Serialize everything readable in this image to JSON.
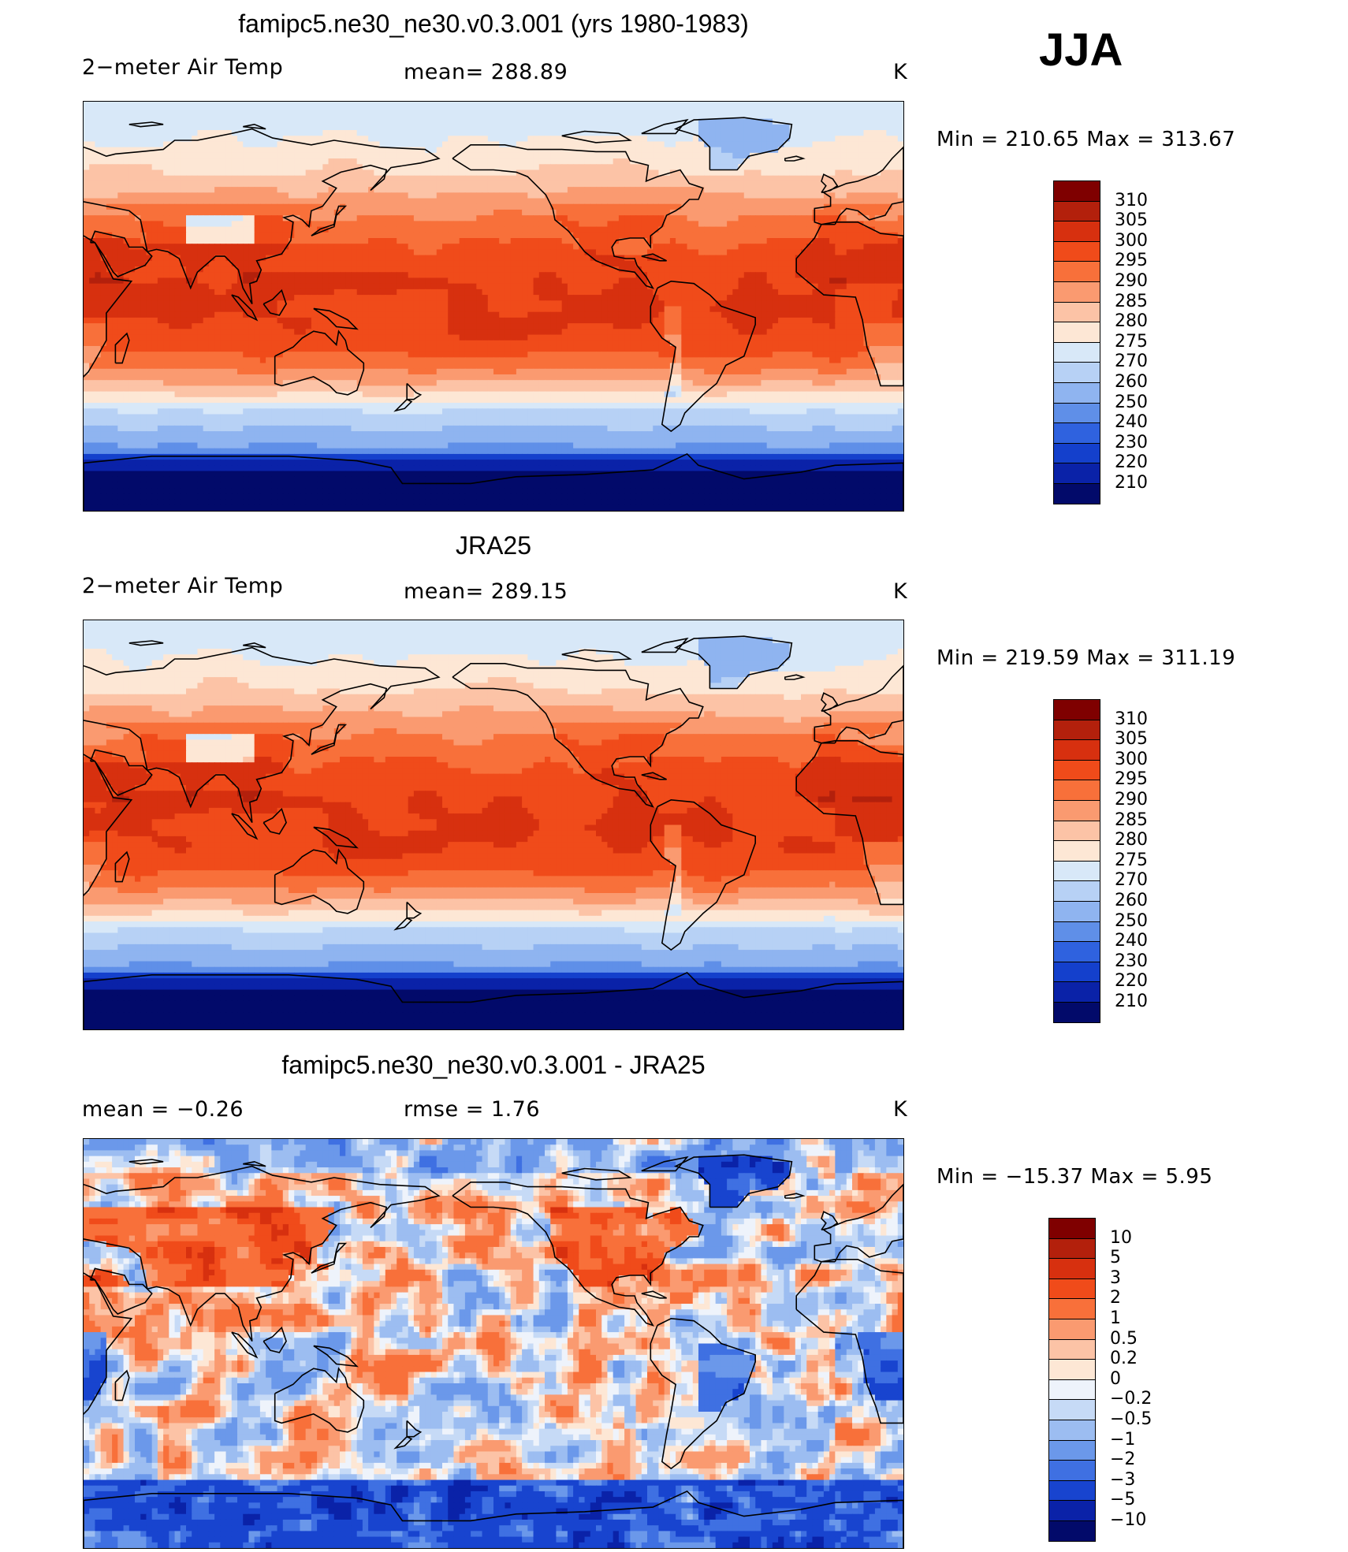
{
  "season": "JJA",
  "panels": [
    {
      "title": "famipc5.ne30_ne30.v0.3.001 (yrs 1980-1983)",
      "left_text": "2−meter Air Temp",
      "center_text": "mean=  288.89",
      "units": "K",
      "minmax": "Min  =  210.65  Max  =  313.67",
      "colorbar": {
        "labels": [
          "310",
          "305",
          "300",
          "295",
          "290",
          "285",
          "280",
          "275",
          "270",
          "260",
          "250",
          "240",
          "230",
          "220",
          "210"
        ],
        "colors": [
          "#7f0000",
          "#b3200c",
          "#d7300f",
          "#f04b1a",
          "#f8703a",
          "#fa9a70",
          "#fcc3a6",
          "#fde7d5",
          "#d8e8f8",
          "#b7d1f5",
          "#8fb4f0",
          "#5f8fe8",
          "#2f62df",
          "#1440cc",
          "#0a22a8",
          "#020a6a"
        ]
      },
      "field": "model"
    },
    {
      "title": "JRA25",
      "left_text": "2−meter Air Temp",
      "center_text": "mean=  289.15",
      "units": "K",
      "minmax": "Min  =  219.59  Max  =  311.19",
      "colorbar": {
        "labels": [
          "310",
          "305",
          "300",
          "295",
          "290",
          "285",
          "280",
          "275",
          "270",
          "260",
          "250",
          "240",
          "230",
          "220",
          "210"
        ],
        "colors": [
          "#7f0000",
          "#b3200c",
          "#d7300f",
          "#f04b1a",
          "#f8703a",
          "#fa9a70",
          "#fcc3a6",
          "#fde7d5",
          "#d8e8f8",
          "#b7d1f5",
          "#8fb4f0",
          "#5f8fe8",
          "#2f62df",
          "#1440cc",
          "#0a22a8",
          "#020a6a"
        ]
      },
      "field": "obs"
    },
    {
      "title": "famipc5.ne30_ne30.v0.3.001 - JRA25",
      "left_text": "mean  =     −0.26",
      "center_text": "rmse  =      1.76",
      "units": "K",
      "minmax": "Min  =  −15.37  Max  =       5.95",
      "colorbar": {
        "labels": [
          "10",
          "5",
          "3",
          "2",
          "1",
          "0.5",
          "0.2",
          "0",
          "−0.2",
          "−0.5",
          "−1",
          "−2",
          "−3",
          "−5",
          "−10"
        ],
        "colors": [
          "#7f0000",
          "#b3200c",
          "#d7300f",
          "#f04b1a",
          "#f8703a",
          "#fa9a70",
          "#fcc3a6",
          "#fde7d5",
          "#eef3fb",
          "#c6daf6",
          "#9cbdf1",
          "#6b98ea",
          "#3f70e2",
          "#1844cf",
          "#0a22a8",
          "#020a6a"
        ]
      },
      "field": "diff"
    }
  ]
}
